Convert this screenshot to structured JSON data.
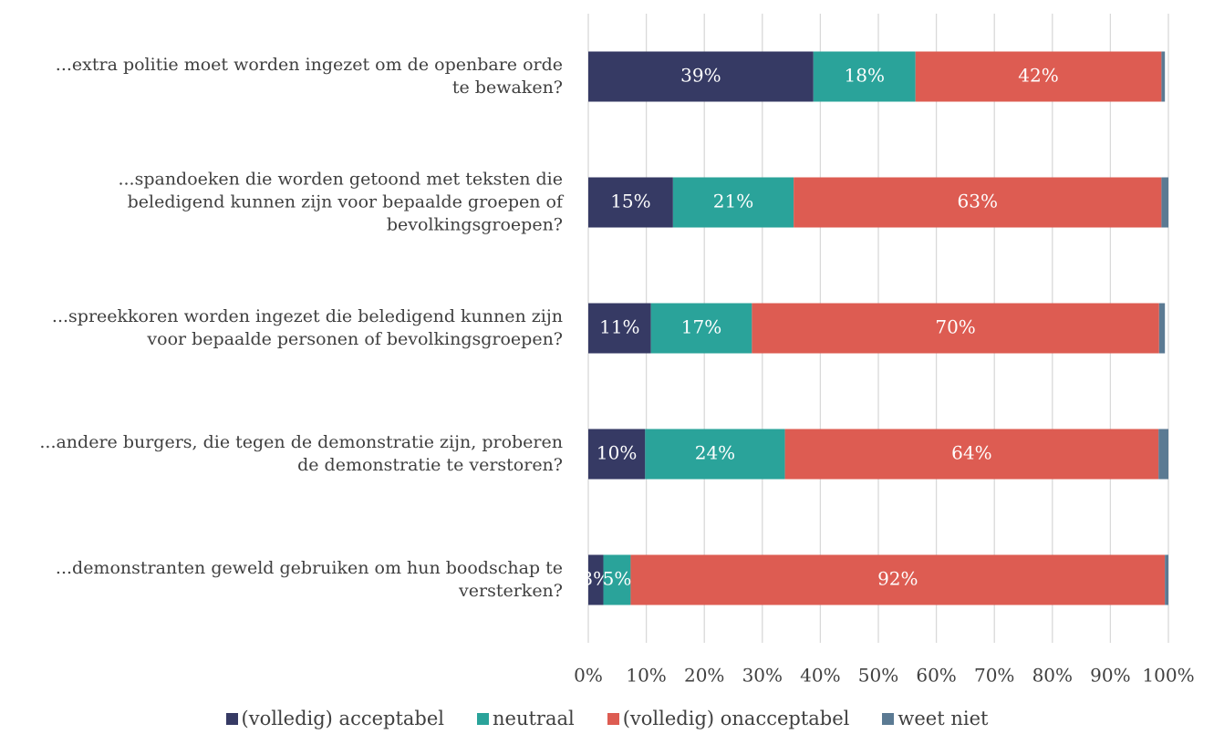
{
  "chart_data": {
    "type": "stacked-bar-horizontal",
    "categories": [
      "...extra politie moet worden ingezet om de openbare orde\nte bewaken?",
      "...spandoeken die worden getoond met teksten die\nbeledigend kunnen zijn voor bepaalde groepen of\nbevolkingsgroepen?",
      "...spreekkoren worden ingezet die beledigend kunnen zijn\nvoor bepaalde personen of bevolkingsgroepen?",
      "...andere burgers, die tegen de demonstratie zijn, proberen\nde demonstratie te verstoren?",
      "...demonstranten geweld gebruiken om hun boodschap te\nversterken?"
    ],
    "series": [
      {
        "name": "(volledig) acceptabel",
        "color": "#363a64",
        "values": [
          38.8,
          14.6,
          10.8,
          9.8,
          2.6
        ],
        "value_labels": [
          "39%",
          "15%",
          "11%",
          "10%",
          "3%"
        ]
      },
      {
        "name": "neutraal",
        "color": "#2aa39a",
        "values": [
          17.6,
          20.8,
          17.4,
          24.1,
          4.7
        ],
        "value_labels": [
          "18%",
          "21%",
          "17%",
          "24%",
          "5%"
        ]
      },
      {
        "name": "(volledig) onacceptabel",
        "color": "#dd5c52",
        "values": [
          42.4,
          63.4,
          70.2,
          64.4,
          92.1
        ],
        "value_labels": [
          "42%",
          "63%",
          "70%",
          "64%",
          "92%"
        ]
      },
      {
        "name": "weet niet",
        "color": "#5b7a93",
        "values": [
          0.6,
          1.2,
          1.0,
          1.7,
          0.6
        ]
      }
    ],
    "xlim": [
      0,
      100
    ],
    "xticks": [
      {
        "value": 0,
        "label": "0%"
      },
      {
        "value": 10,
        "label": "10%"
      },
      {
        "value": 20,
        "label": "20%"
      },
      {
        "value": 30,
        "label": "30%"
      },
      {
        "value": 40,
        "label": "40%"
      },
      {
        "value": 50,
        "label": "50%"
      },
      {
        "value": 60,
        "label": "60%"
      },
      {
        "value": 70,
        "label": "70%"
      },
      {
        "value": 80,
        "label": "80%"
      },
      {
        "value": 90,
        "label": "90%"
      },
      {
        "value": 100,
        "label": "100%"
      }
    ],
    "grid": true
  }
}
